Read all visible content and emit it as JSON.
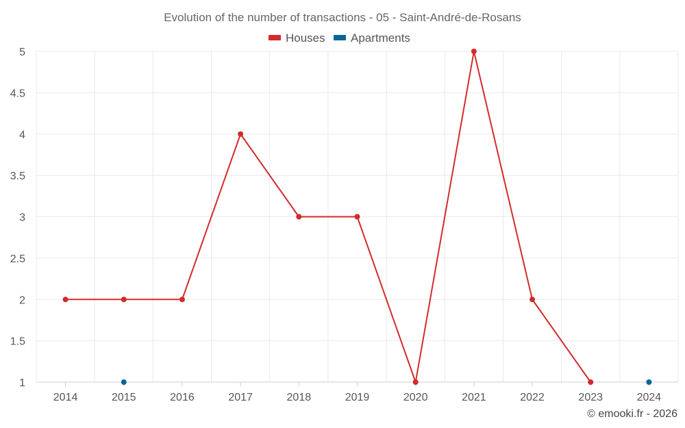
{
  "chart_data": {
    "type": "line",
    "title": "Evolution of the number of transactions - 05 - Saint-André-de-Rosans",
    "x": [
      "2014",
      "2015",
      "2016",
      "2017",
      "2018",
      "2019",
      "2020",
      "2021",
      "2022",
      "2023",
      "2024"
    ],
    "ylim": [
      1,
      5
    ],
    "yticks": [
      "1",
      "1.5",
      "2",
      "2.5",
      "3",
      "3.5",
      "4",
      "4.5",
      "5"
    ],
    "grid": true,
    "legend_position": "top-center",
    "series": [
      {
        "name": "Houses",
        "color": "#d42a2a",
        "values": [
          2,
          2,
          2,
          4,
          3,
          3,
          1,
          5,
          2,
          1,
          null
        ]
      },
      {
        "name": "Apartments",
        "color": "#0a6496",
        "values": [
          null,
          1,
          null,
          null,
          null,
          null,
          null,
          null,
          null,
          null,
          1
        ]
      }
    ]
  },
  "credit": "© emooki.fr - 2026"
}
